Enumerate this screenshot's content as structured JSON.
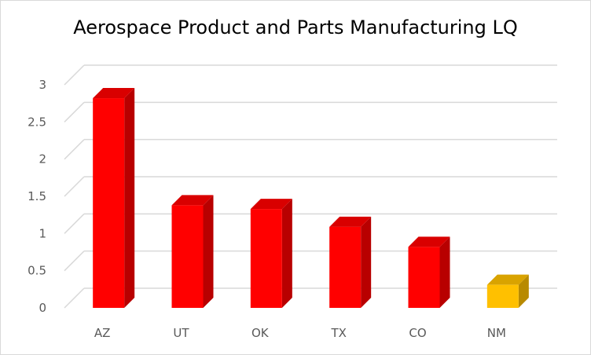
{
  "chart_data": {
    "type": "bar",
    "title": "Aerospace Product and Parts Manufacturing LQ",
    "categories": [
      "AZ",
      "UT",
      "OK",
      "TX",
      "CO",
      "NM"
    ],
    "values": [
      2.82,
      1.38,
      1.33,
      1.09,
      0.82,
      0.31
    ],
    "bar_colors": [
      "#ff0000",
      "#ff0000",
      "#ff0000",
      "#ff0000",
      "#ff0000",
      "#ffc000"
    ],
    "xlabel": "",
    "ylabel": "",
    "ylim": [
      0,
      3
    ],
    "yticks": [
      "0",
      "0.5",
      "1",
      "1.5",
      "2",
      "2.5",
      "3"
    ],
    "grid": true,
    "legend": "none",
    "style": "3d-column"
  }
}
